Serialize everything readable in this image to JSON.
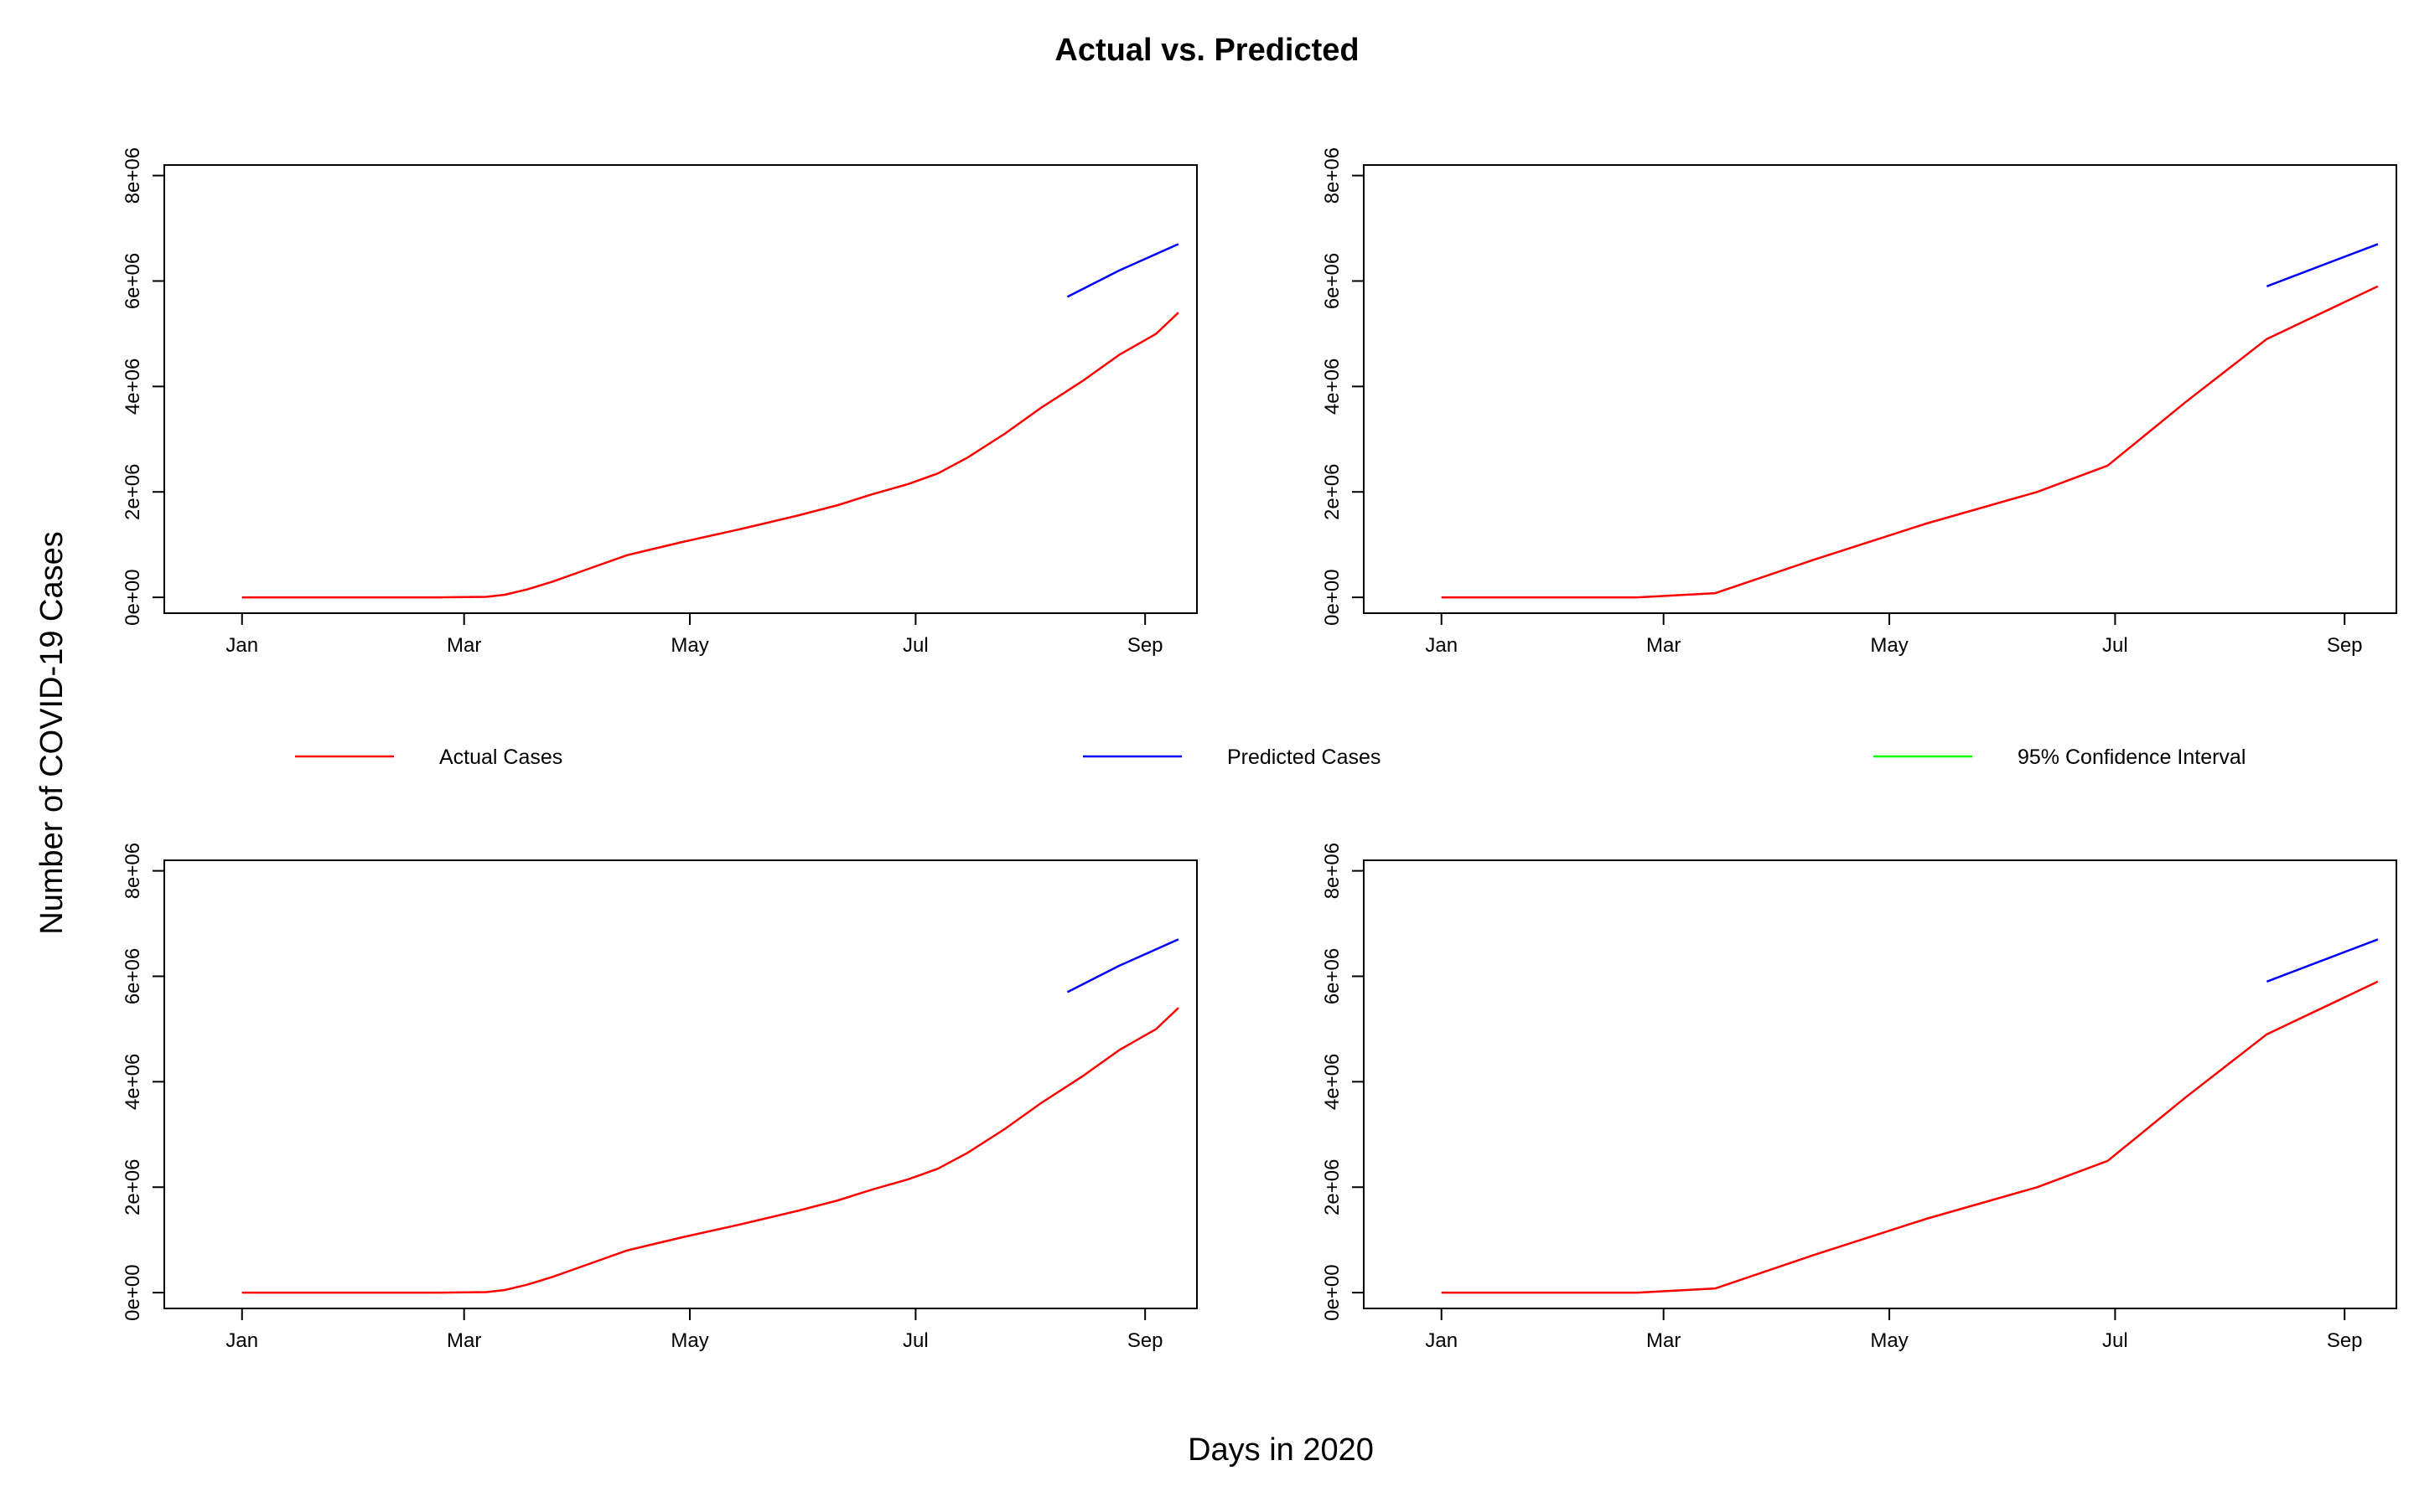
{
  "page": {
    "title": "Actual vs. Predicted",
    "xlabel": "Days in 2020",
    "ylabel": "Number of COVID-19 Cases"
  },
  "legend": {
    "placement": "center-between-rows",
    "entries": [
      {
        "label": "Actual Cases",
        "color": "#ff0000"
      },
      {
        "label": "Predicted Cases",
        "color": "#0000ff"
      },
      {
        "label": "95% Confidence Interval",
        "color": "#00ff00"
      }
    ]
  },
  "colors": {
    "actual": "#ff0000",
    "predicted": "#0000ff",
    "ci": "#00ff00",
    "axis": "#000000"
  },
  "chart_data": [
    {
      "type": "line",
      "x_type": "date",
      "xlim": [
        "2020-01-01",
        "2020-10-06"
      ],
      "ylim": [
        -300000,
        8200000
      ],
      "x_ticks": [
        {
          "value": "2020-01-22",
          "label": "Jan"
        },
        {
          "value": "2020-03-22",
          "label": "Mar"
        },
        {
          "value": "2020-05-22",
          "label": "May"
        },
        {
          "value": "2020-07-22",
          "label": "Jul"
        },
        {
          "value": "2020-09-22",
          "label": "Sep"
        }
      ],
      "y_ticks": [
        {
          "value": 0,
          "label": "0e+00"
        },
        {
          "value": 2000000,
          "label": "2e+06"
        },
        {
          "value": 4000000,
          "label": "4e+06"
        },
        {
          "value": 6000000,
          "label": "6e+06"
        },
        {
          "value": 8000000,
          "label": "8e+06"
        }
      ],
      "series": [
        {
          "key": "actual",
          "x": [
            "2020-01-22",
            "2020-02-15",
            "2020-03-15",
            "2020-03-28",
            "2020-04-02",
            "2020-04-08",
            "2020-04-15",
            "2020-04-25",
            "2020-05-05",
            "2020-05-20",
            "2020-06-05",
            "2020-06-20",
            "2020-07-01",
            "2020-07-10",
            "2020-07-20",
            "2020-07-28",
            "2020-08-05",
            "2020-08-15",
            "2020-08-25",
            "2020-09-05",
            "2020-09-15",
            "2020-09-25",
            "2020-10-01"
          ],
          "y": [
            0,
            0,
            0,
            10000,
            50000,
            150000,
            300000,
            550000,
            800000,
            1050000,
            1300000,
            1550000,
            1750000,
            1950000,
            2150000,
            2350000,
            2650000,
            3100000,
            3600000,
            4100000,
            4600000,
            5000000,
            5400000
          ]
        },
        {
          "key": "predicted",
          "x": [
            "2020-09-01",
            "2020-09-15",
            "2020-10-01"
          ],
          "y": [
            5700000,
            6200000,
            6700000
          ]
        }
      ]
    },
    {
      "type": "line",
      "x_type": "date",
      "xlim": [
        "2020-01-01",
        "2020-10-06"
      ],
      "ylim": [
        -300000,
        8200000
      ],
      "x_ticks": [
        {
          "value": "2020-01-22",
          "label": "Jan"
        },
        {
          "value": "2020-03-22",
          "label": "Mar"
        },
        {
          "value": "2020-05-22",
          "label": "May"
        },
        {
          "value": "2020-07-22",
          "label": "Jul"
        },
        {
          "value": "2020-09-22",
          "label": "Sep"
        }
      ],
      "y_ticks": [
        {
          "value": 0,
          "label": "0e+00"
        },
        {
          "value": 2000000,
          "label": "2e+06"
        },
        {
          "value": 4000000,
          "label": "4e+06"
        },
        {
          "value": 6000000,
          "label": "6e+06"
        },
        {
          "value": 8000000,
          "label": "8e+06"
        }
      ],
      "series": [
        {
          "key": "actual",
          "x": [
            "2020-01-22",
            "2020-03-15",
            "2020-04-05",
            "2020-05-01",
            "2020-06-01",
            "2020-07-01",
            "2020-07-20",
            "2020-08-10",
            "2020-09-01",
            "2020-10-01"
          ],
          "y": [
            0,
            0,
            80000,
            700000,
            1400000,
            2000000,
            2500000,
            3700000,
            4900000,
            5900000
          ]
        },
        {
          "key": "predicted",
          "x": [
            "2020-09-01",
            "2020-10-01"
          ],
          "y": [
            5900000,
            6700000
          ]
        }
      ]
    }
  ]
}
